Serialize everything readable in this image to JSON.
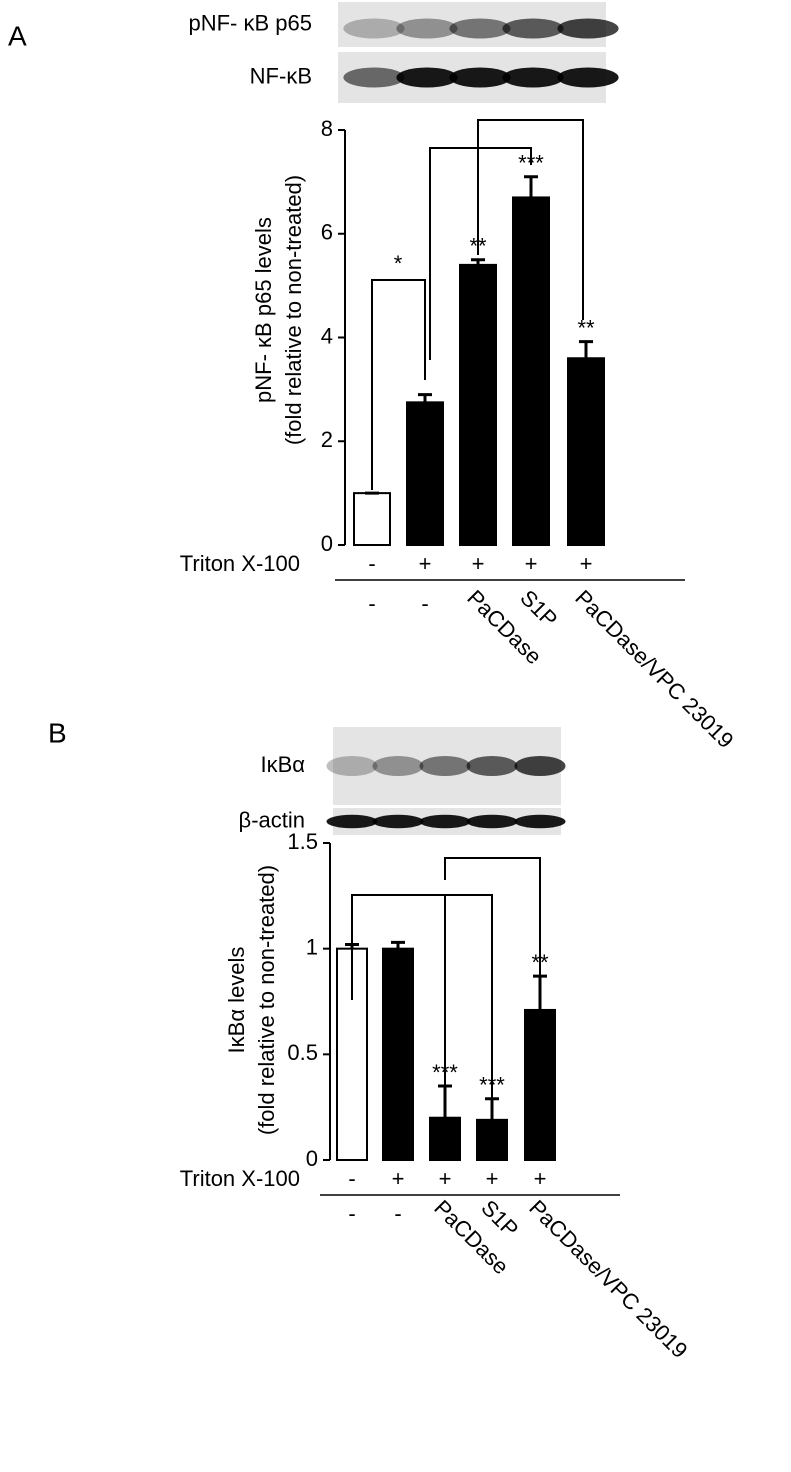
{
  "chart_data": [
    {
      "type": "bar",
      "panel": "A",
      "blots": [
        "pNF- κB p65",
        "NF-κB"
      ],
      "ylabel": [
        "pNF- κB p65 levels",
        "(fold relative to non-treated)"
      ],
      "ylim": [
        0,
        8
      ],
      "yticks": [
        0,
        2,
        4,
        6,
        8
      ],
      "row_label": "Triton X-100",
      "triton": [
        "-",
        "+",
        "+",
        "+",
        "+"
      ],
      "categories": [
        "-",
        "-",
        "PaCDase",
        "S1P",
        "PaCDase/VPC 23019"
      ],
      "colors": [
        "#ffffff",
        "#000000",
        "#000000",
        "#000000",
        "#000000"
      ],
      "values": [
        1.0,
        2.75,
        5.4,
        6.7,
        3.6
      ],
      "errors": [
        0,
        0.15,
        0.1,
        0.4,
        0.32
      ],
      "significance": [
        null,
        null,
        "**",
        "***",
        "**"
      ],
      "bracket_label": "*"
    },
    {
      "type": "bar",
      "panel": "B",
      "blots": [
        "IκBα",
        "β-actin"
      ],
      "ylabel": [
        "IκBα levels",
        "(fold relative to non-treated)"
      ],
      "ylim": [
        0,
        1.5
      ],
      "yticks": [
        0,
        0.5,
        1,
        1.5
      ],
      "row_label": "Triton X-100",
      "triton": [
        "-",
        "+",
        "+",
        "+",
        "+"
      ],
      "categories": [
        "-",
        "-",
        "PaCDase",
        "S1P",
        "PaCDase/VPC 23019"
      ],
      "colors": [
        "#ffffff",
        "#000000",
        "#000000",
        "#000000",
        "#000000"
      ],
      "values": [
        1.0,
        1.0,
        0.2,
        0.19,
        0.71
      ],
      "errors": [
        0.02,
        0.03,
        0.15,
        0.1,
        0.16
      ],
      "significance": [
        null,
        null,
        "***",
        "***",
        "**"
      ]
    }
  ]
}
